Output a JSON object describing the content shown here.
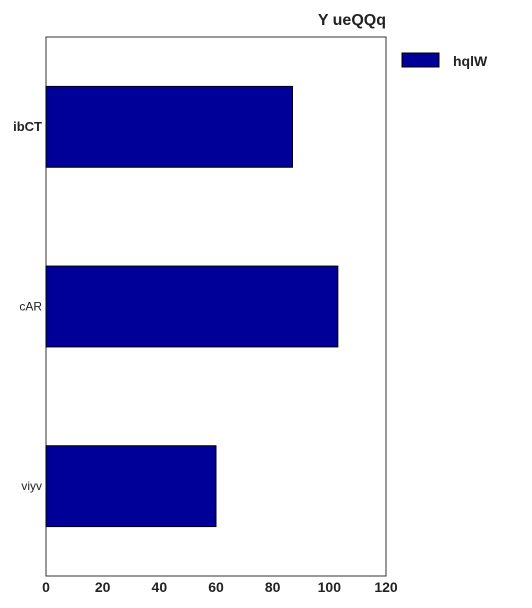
{
  "chart_data": {
    "type": "bar",
    "orientation": "horizontal",
    "title": "Y ueQQq",
    "xlabel": "",
    "ylabel": "",
    "categories": [
      "ibCT",
      "cAR",
      "viyv"
    ],
    "category_bold": [
      true,
      false,
      false
    ],
    "series": [
      {
        "name": "hqlW",
        "values": [
          87,
          103,
          60
        ],
        "color": "#000099"
      }
    ],
    "xlim": [
      0,
      120
    ],
    "xticks": [
      0,
      20,
      40,
      60,
      80,
      100,
      120
    ],
    "grid": false,
    "legend": "outside-top-right"
  }
}
